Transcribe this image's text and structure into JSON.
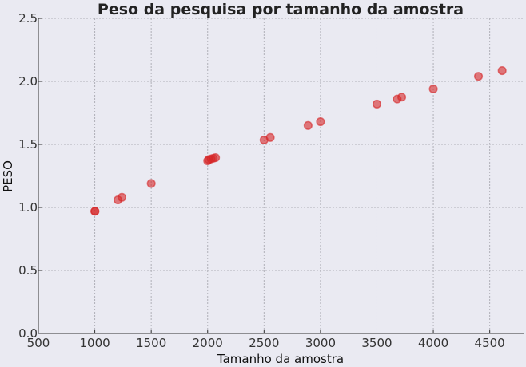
{
  "chart_data": {
    "type": "scatter",
    "title": "Peso da pesquisa por tamanho da amostra",
    "xlabel": "Tamanho da amostra",
    "ylabel": "PESO",
    "xlim": [
      500,
      4800
    ],
    "ylim": [
      0,
      2.5
    ],
    "xticks": [
      500,
      1000,
      1500,
      2000,
      2500,
      3000,
      3500,
      4000,
      4500
    ],
    "yticks": [
      0.0,
      0.5,
      1.0,
      1.5,
      2.0,
      2.5
    ],
    "xtick_labels": [
      "500",
      "1000",
      "1500",
      "2000",
      "2500",
      "3000",
      "3500",
      "4000",
      "4500"
    ],
    "ytick_labels": [
      "0.0",
      "0.5",
      "1.0",
      "1.5",
      "2.0",
      "2.5"
    ],
    "grid": true,
    "legend": "none",
    "colors": {
      "point": "#d62728",
      "background": "#eaeaf2"
    },
    "series": [
      {
        "points": [
          {
            "x": 1000,
            "y": 0.97
          },
          {
            "x": 1002,
            "y": 0.97
          },
          {
            "x": 1205,
            "y": 1.06
          },
          {
            "x": 1240,
            "y": 1.08
          },
          {
            "x": 1500,
            "y": 1.19
          },
          {
            "x": 2000,
            "y": 1.37
          },
          {
            "x": 2010,
            "y": 1.38
          },
          {
            "x": 2030,
            "y": 1.385
          },
          {
            "x": 2050,
            "y": 1.39
          },
          {
            "x": 2070,
            "y": 1.395
          },
          {
            "x": 2500,
            "y": 1.535
          },
          {
            "x": 2555,
            "y": 1.555
          },
          {
            "x": 2890,
            "y": 1.65
          },
          {
            "x": 3000,
            "y": 1.68
          },
          {
            "x": 3500,
            "y": 1.82
          },
          {
            "x": 3680,
            "y": 1.86
          },
          {
            "x": 3720,
            "y": 1.875
          },
          {
            "x": 4000,
            "y": 1.94
          },
          {
            "x": 4400,
            "y": 2.04
          },
          {
            "x": 4610,
            "y": 2.085
          }
        ]
      }
    ]
  }
}
